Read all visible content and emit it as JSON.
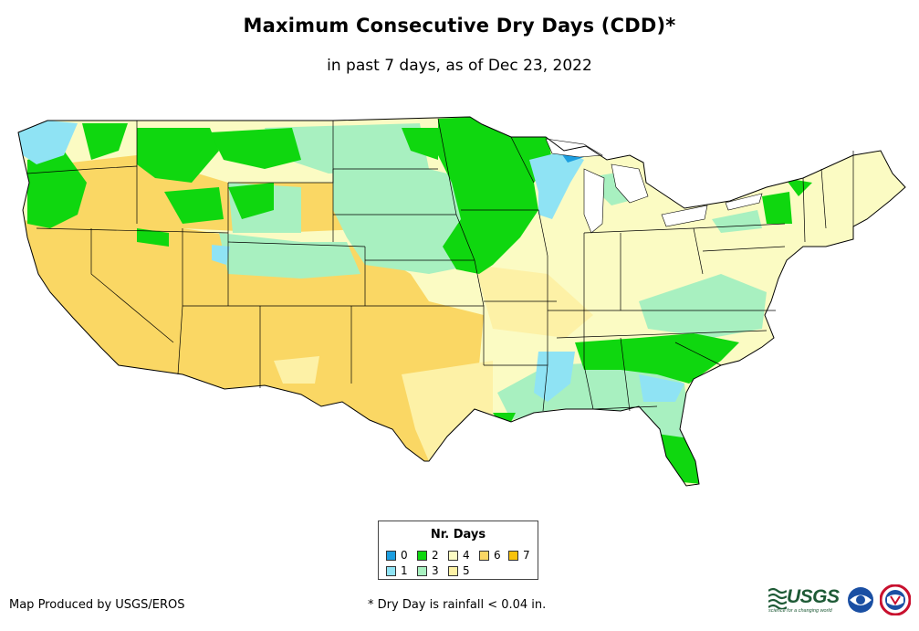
{
  "map": {
    "title": "Maximum Consecutive Dry Days (CDD)*",
    "subtitle": "in past 7 days, as of Dec 23, 2022"
  },
  "legend": {
    "title": "Nr. Days",
    "items": [
      {
        "label": "0",
        "color": "#1c9ee0"
      },
      {
        "label": "1",
        "color": "#8fe3f4"
      },
      {
        "label": "2",
        "color": "#0fd70f"
      },
      {
        "label": "3",
        "color": "#a8f0c0"
      },
      {
        "label": "4",
        "color": "#fbfbc3"
      },
      {
        "label": "5",
        "color": "#fdf1a6"
      },
      {
        "label": "6",
        "color": "#fad764"
      },
      {
        "label": "7",
        "color": "#f9c20a"
      }
    ]
  },
  "footer": {
    "credit": "Map Produced by USGS/EROS",
    "footnote": "* Dry Day is rainfall < 0.04 in.",
    "usgs_logo_text": "USGS",
    "usgs_tagline": "science for a changing world",
    "logos": [
      "usgs-logo",
      "noaa-logo",
      "nws-logo"
    ]
  }
}
